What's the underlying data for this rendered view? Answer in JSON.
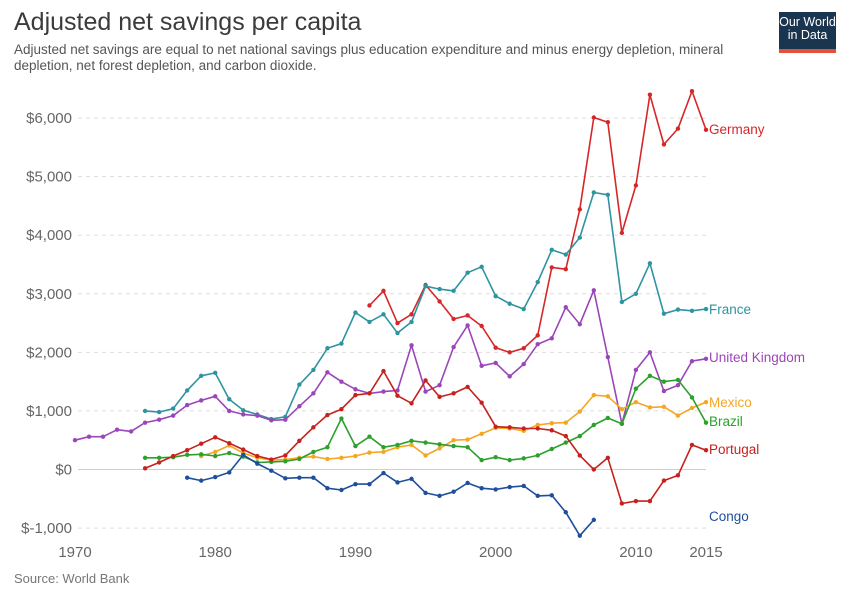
{
  "title": "Adjusted net savings per capita",
  "subtitle": "Adjusted net savings are equal to net national savings plus education expenditure and minus energy depletion, mineral depletion, net forest depletion, and carbon dioxide.",
  "source": "Source: World Bank",
  "logo": {
    "line1": "Our World",
    "line2": "in Data"
  },
  "chart_data": {
    "type": "line",
    "title": "Adjusted net savings per capita",
    "xlim": [
      1970,
      2015
    ],
    "ylim": [
      -1000,
      6000
    ],
    "x_ticks": [
      1970,
      1980,
      1990,
      2000,
      2010,
      2015
    ],
    "y_ticks": [
      -1000,
      0,
      1000,
      2000,
      3000,
      4000,
      5000,
      6000
    ],
    "y_tick_labels": [
      "$-1,000",
      "$0",
      "$1,000",
      "$2,000",
      "$3,000",
      "$4,000",
      "$5,000",
      "$6,000"
    ],
    "grid": "horizontal dashed",
    "legend": "labels at line ends",
    "series": [
      {
        "name": "Germany",
        "color": "#d62728",
        "x": [
          1991,
          1992,
          1993,
          1994,
          1995,
          1996,
          1997,
          1998,
          1999,
          2000,
          2001,
          2002,
          2003,
          2004,
          2005,
          2006,
          2007,
          2008,
          2009,
          2010,
          2011,
          2012,
          2013,
          2014,
          2015
        ],
        "y": [
          2800,
          3050,
          2500,
          2650,
          3150,
          2870,
          2570,
          2630,
          2450,
          2080,
          2000,
          2070,
          2290,
          3450,
          3420,
          4440,
          6010,
          5930,
          4040,
          4850,
          6400,
          5550,
          5820,
          6460,
          5800
        ]
      },
      {
        "name": "France",
        "color": "#2e94a0",
        "x": [
          1975,
          1976,
          1977,
          1978,
          1979,
          1980,
          1981,
          1982,
          1983,
          1984,
          1985,
          1986,
          1987,
          1988,
          1989,
          1990,
          1991,
          1992,
          1993,
          1994,
          1995,
          1996,
          1997,
          1998,
          1999,
          2000,
          2001,
          2002,
          2003,
          2004,
          2005,
          2006,
          2007,
          2008,
          2009,
          2010,
          2011,
          2012,
          2013,
          2014,
          2015
        ],
        "y": [
          1000,
          980,
          1040,
          1350,
          1600,
          1650,
          1200,
          1010,
          940,
          860,
          900,
          1450,
          1700,
          2070,
          2150,
          2680,
          2520,
          2650,
          2330,
          2520,
          3130,
          3080,
          3050,
          3360,
          3460,
          2960,
          2830,
          2740,
          3200,
          3750,
          3670,
          3960,
          4730,
          4690,
          2860,
          3000,
          3520,
          2660,
          2730,
          2710,
          2740
        ]
      },
      {
        "name": "United Kingdom",
        "color": "#9b46b8",
        "x": [
          1970,
          1971,
          1972,
          1973,
          1974,
          1975,
          1976,
          1977,
          1978,
          1979,
          1980,
          1981,
          1982,
          1983,
          1984,
          1985,
          1986,
          1987,
          1988,
          1989,
          1990,
          1991,
          1992,
          1993,
          1994,
          1995,
          1996,
          1997,
          1998,
          1999,
          2000,
          2001,
          2002,
          2003,
          2004,
          2005,
          2006,
          2007,
          2008,
          2009,
          2010,
          2011,
          2012,
          2013,
          2014,
          2015
        ],
        "y": [
          500,
          560,
          560,
          680,
          650,
          800,
          850,
          920,
          1100,
          1180,
          1250,
          1000,
          940,
          920,
          840,
          850,
          1080,
          1300,
          1660,
          1500,
          1370,
          1300,
          1330,
          1350,
          2120,
          1330,
          1440,
          2090,
          2460,
          1770,
          1820,
          1590,
          1800,
          2140,
          2240,
          2770,
          2480,
          3060,
          1920,
          780,
          1700,
          2000,
          1340,
          1440,
          1850,
          1890
        ]
      },
      {
        "name": "Mexico",
        "color": "#f5a623",
        "x": [
          1979,
          1980,
          1981,
          1982,
          1983,
          1984,
          1985,
          1986,
          1987,
          1988,
          1989,
          1990,
          1991,
          1992,
          1993,
          1994,
          1995,
          1996,
          1997,
          1998,
          1999,
          2000,
          2001,
          2002,
          2003,
          2004,
          2005,
          2006,
          2007,
          2008,
          2009,
          2010,
          2011,
          2012,
          2013,
          2014,
          2015
        ],
        "y": [
          230,
          300,
          410,
          280,
          200,
          160,
          170,
          200,
          220,
          180,
          200,
          230,
          290,
          300,
          380,
          420,
          240,
          360,
          500,
          510,
          610,
          710,
          700,
          660,
          760,
          790,
          800,
          990,
          1270,
          1250,
          1030,
          1150,
          1060,
          1070,
          920,
          1050,
          1150
        ]
      },
      {
        "name": "Brazil",
        "color": "#2ca02c",
        "x": [
          1975,
          1976,
          1977,
          1978,
          1979,
          1980,
          1981,
          1982,
          1983,
          1984,
          1985,
          1986,
          1987,
          1988,
          1989,
          1990,
          1991,
          1992,
          1993,
          1994,
          1995,
          1996,
          1997,
          1998,
          1999,
          2000,
          2001,
          2002,
          2003,
          2004,
          2005,
          2006,
          2007,
          2008,
          2009,
          2010,
          2011,
          2012,
          2013,
          2014,
          2015
        ],
        "y": [
          200,
          200,
          210,
          250,
          260,
          230,
          280,
          220,
          120,
          130,
          140,
          180,
          300,
          380,
          870,
          400,
          560,
          380,
          420,
          490,
          460,
          430,
          400,
          380,
          160,
          210,
          160,
          190,
          240,
          350,
          460,
          570,
          760,
          880,
          780,
          1380,
          1600,
          1500,
          1530,
          1230,
          800
        ]
      },
      {
        "name": "Portugal",
        "color": "#c5211d",
        "x": [
          1975,
          1976,
          1977,
          1978,
          1979,
          1980,
          1981,
          1982,
          1983,
          1984,
          1985,
          1986,
          1987,
          1988,
          1989,
          1990,
          1991,
          1992,
          1993,
          1994,
          1995,
          1996,
          1997,
          1998,
          1999,
          2000,
          2001,
          2002,
          2003,
          2004,
          2005,
          2006,
          2007,
          2008,
          2009,
          2010,
          2011,
          2012,
          2013,
          2014,
          2015
        ],
        "y": [
          20,
          120,
          230,
          330,
          440,
          550,
          450,
          340,
          230,
          170,
          240,
          490,
          720,
          930,
          1030,
          1270,
          1300,
          1680,
          1260,
          1130,
          1520,
          1240,
          1300,
          1410,
          1140,
          730,
          720,
          700,
          700,
          670,
          570,
          240,
          0,
          200,
          -580,
          -540,
          -540,
          -190,
          -100,
          420,
          330
        ]
      },
      {
        "name": "Congo",
        "color": "#1f4e9c",
        "x": [
          1978,
          1979,
          1980,
          1981,
          1982,
          1983,
          1984,
          1985,
          1986,
          1987,
          1988,
          1989,
          1990,
          1991,
          1992,
          1993,
          1994,
          1995,
          1996,
          1997,
          1998,
          1999,
          2000,
          2001,
          2002,
          2003,
          2004,
          2005,
          2006,
          2007
        ],
        "y": [
          -140,
          -190,
          -130,
          -50,
          250,
          100,
          -20,
          -150,
          -140,
          -140,
          -320,
          -350,
          -250,
          -250,
          -60,
          -220,
          -160,
          -400,
          -450,
          -380,
          -230,
          -320,
          -340,
          -300,
          -280,
          -450,
          -440,
          -730,
          -1130,
          -860
        ]
      }
    ],
    "end_labels": [
      {
        "name": "Germany",
        "value": 5800
      },
      {
        "name": "France",
        "value": 2740
      },
      {
        "name": "United Kingdom",
        "value": 1890
      },
      {
        "name": "Mexico",
        "value": 1150
      },
      {
        "name": "Brazil",
        "value": 800
      },
      {
        "name": "Portugal",
        "value": 330
      },
      {
        "name": "Congo",
        "value": -860
      }
    ]
  }
}
